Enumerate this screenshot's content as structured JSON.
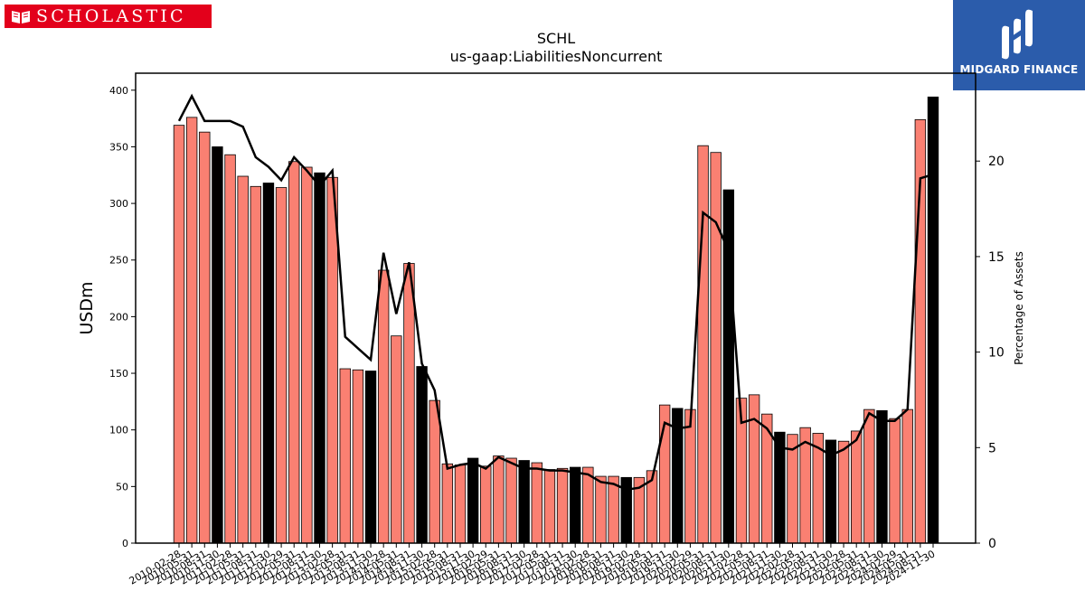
{
  "brand": {
    "left_logo": "SCHOLASTIC",
    "right_logo": "MIDGARD FINANCE",
    "accent": "#e3001b",
    "right_bg": "#2b5cab"
  },
  "chart_data": {
    "type": "bar",
    "title": "SCHL",
    "subtitle": "us-gaap:LiabilitiesNoncurrent",
    "ylabel": "USDm",
    "y2label": "Percentage of Assets",
    "ylim": [
      0,
      415
    ],
    "y2lim": [
      0,
      24.6
    ],
    "yticks": [
      0,
      50,
      100,
      150,
      200,
      250,
      300,
      350,
      400
    ],
    "y2ticks": [
      0,
      5,
      10,
      15,
      20
    ],
    "bar_color": "#fa8072",
    "highlight_color": "#000000",
    "line_color": "#000000",
    "grid": false,
    "categories": [
      "2010-02-28",
      "2010-05-31",
      "2010-08-31",
      "2010-11-30",
      "2011-02-28",
      "2011-05-31",
      "2011-08-31",
      "2011-11-30",
      "2012-02-29",
      "2012-05-31",
      "2012-08-31",
      "2012-11-30",
      "2013-02-28",
      "2013-05-31",
      "2013-08-31",
      "2013-11-30",
      "2014-02-28",
      "2014-05-31",
      "2014-08-31",
      "2014-11-30",
      "2015-02-28",
      "2015-05-31",
      "2015-08-31",
      "2015-11-30",
      "2016-02-29",
      "2016-05-31",
      "2016-08-31",
      "2016-11-30",
      "2017-02-28",
      "2017-05-31",
      "2017-08-31",
      "2017-11-30",
      "2018-02-28",
      "2018-05-31",
      "2018-08-31",
      "2018-11-30",
      "2019-02-28",
      "2019-05-31",
      "2019-08-31",
      "2019-11-30",
      "2020-02-29",
      "2020-05-31",
      "2020-08-31",
      "2020-11-30",
      "2021-02-28",
      "2021-05-31",
      "2021-08-31",
      "2021-11-30",
      "2022-02-28",
      "2022-05-31",
      "2022-08-31",
      "2022-11-30",
      "2023-02-28",
      "2023-05-31",
      "2023-08-31",
      "2023-11-30",
      "2024-02-29",
      "2024-05-31",
      "2024-08-31",
      "2024-11-30"
    ],
    "values": [
      369,
      376,
      363,
      350,
      343,
      324,
      315,
      318,
      314,
      337,
      332,
      327,
      323,
      154,
      153,
      152,
      241,
      183,
      247,
      156,
      126,
      70,
      69,
      75,
      68,
      77,
      75,
      73,
      71,
      65,
      66,
      67,
      67,
      59,
      59,
      58,
      58,
      64,
      122,
      119,
      118,
      351,
      345,
      312,
      128,
      131,
      114,
      98,
      96,
      102,
      97,
      91,
      90,
      99,
      118,
      117,
      110,
      118,
      374,
      394
    ],
    "highlight": [
      false,
      false,
      false,
      true,
      false,
      false,
      false,
      true,
      false,
      false,
      false,
      true,
      false,
      false,
      false,
      true,
      false,
      false,
      false,
      true,
      false,
      false,
      false,
      true,
      false,
      false,
      false,
      true,
      false,
      false,
      false,
      true,
      false,
      false,
      false,
      true,
      false,
      false,
      false,
      true,
      false,
      false,
      false,
      true,
      false,
      false,
      false,
      true,
      false,
      false,
      false,
      true,
      false,
      false,
      false,
      true,
      false,
      false,
      false,
      true
    ],
    "series": [
      {
        "type": "line",
        "axis": "right",
        "values": [
          22.1,
          23.4,
          22.1,
          22.1,
          22.1,
          21.8,
          20.2,
          19.7,
          19.0,
          20.2,
          19.5,
          18.7,
          19.5,
          10.8,
          10.2,
          9.6,
          15.2,
          12.0,
          14.7,
          9.4,
          8.0,
          3.9,
          4.1,
          4.2,
          3.9,
          4.5,
          4.2,
          3.9,
          3.9,
          3.8,
          3.8,
          3.7,
          3.6,
          3.2,
          3.1,
          2.8,
          2.9,
          3.3,
          6.3,
          6.0,
          6.1,
          17.3,
          16.8,
          15.3,
          6.3,
          6.5,
          6.0,
          5.0,
          4.9,
          5.3,
          5.0,
          4.6,
          4.9,
          5.4,
          6.8,
          6.4,
          6.4,
          7.0,
          19.1,
          19.3
        ]
      }
    ]
  }
}
